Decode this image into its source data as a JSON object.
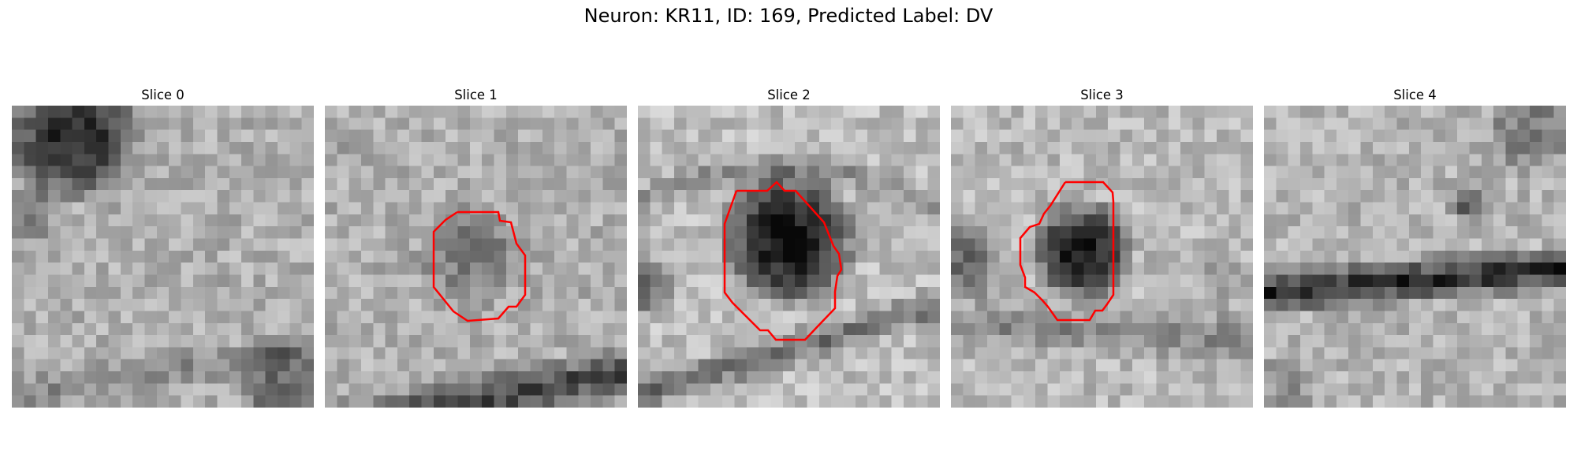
{
  "figure": {
    "title": "Neuron: KR11, ID: 169, Predicted Label: DV"
  },
  "panels": [
    {
      "title": "Slice 0",
      "has_contour": false
    },
    {
      "title": "Slice 1",
      "has_contour": true
    },
    {
      "title": "Slice 2",
      "has_contour": true
    },
    {
      "title": "Slice 3",
      "has_contour": true
    },
    {
      "title": "Slice 4",
      "has_contour": false
    }
  ],
  "colors": {
    "contour": "#ff0000",
    "background": "#ffffff",
    "colormap": "gray"
  }
}
